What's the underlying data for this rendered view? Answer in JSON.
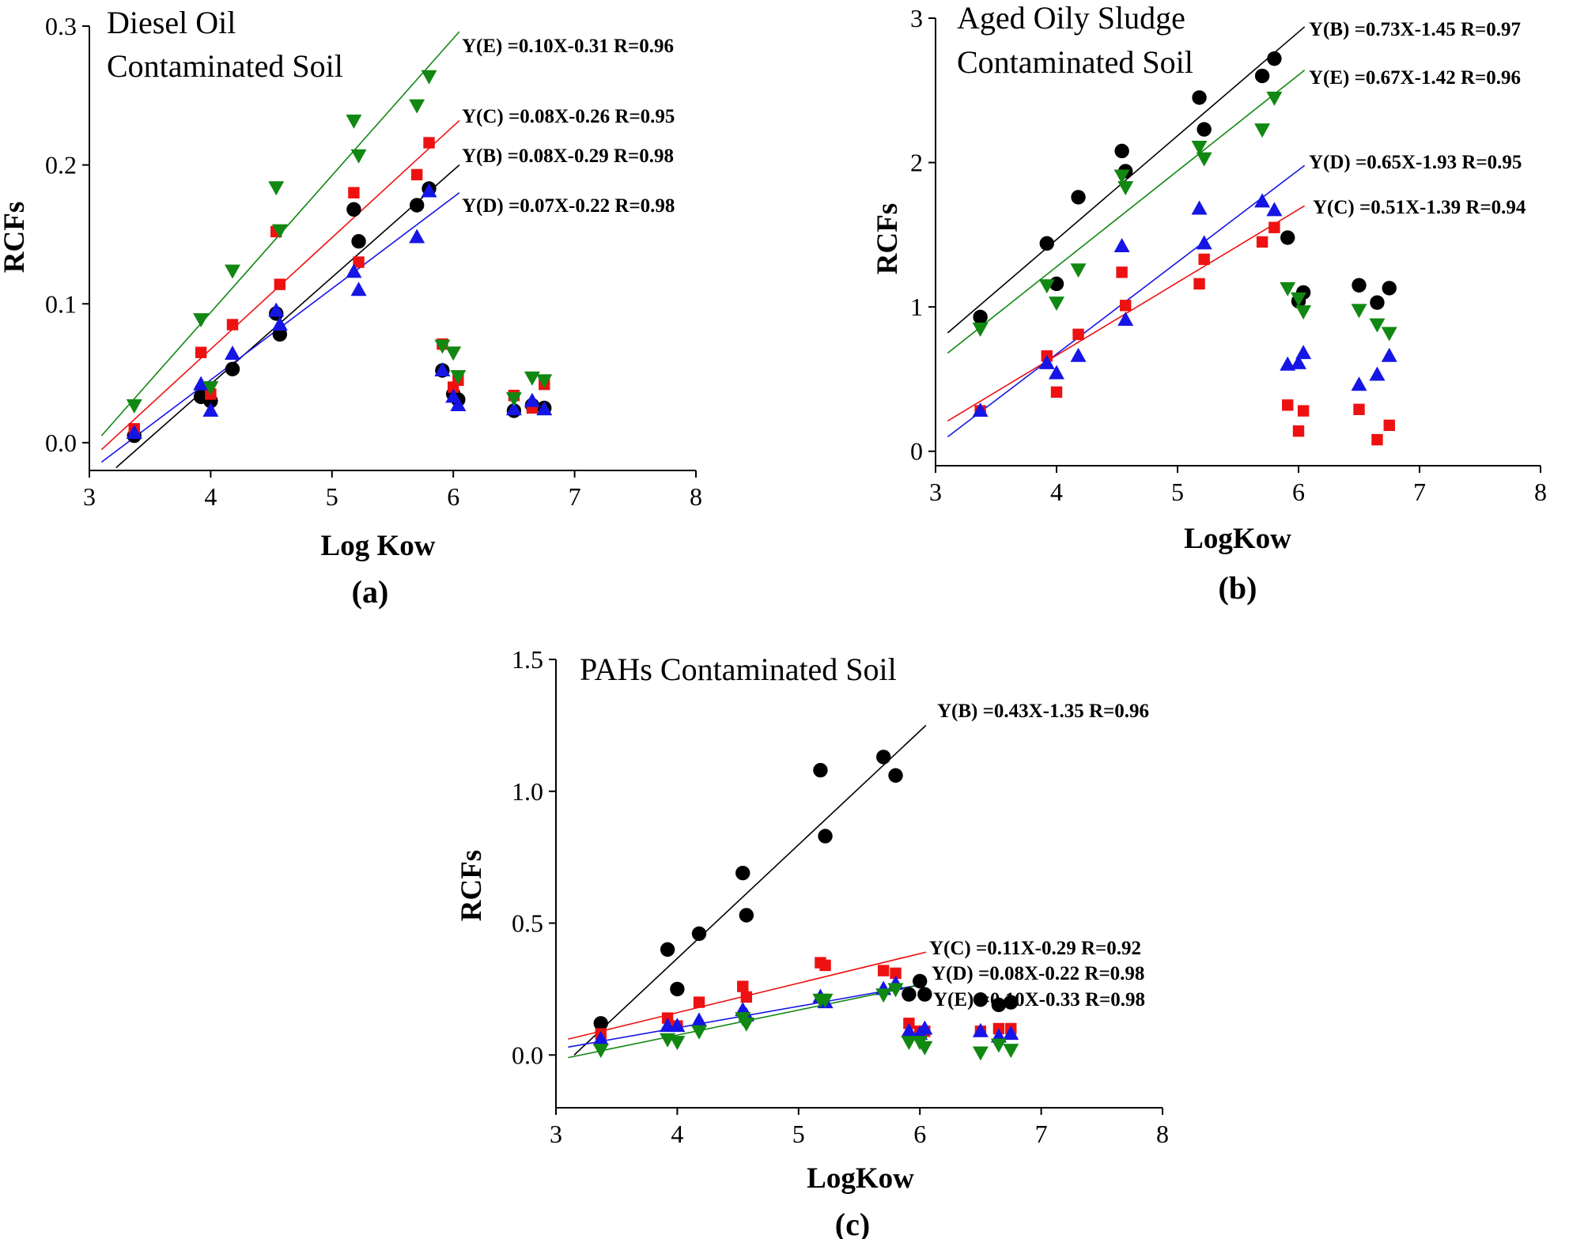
{
  "colors": {
    "B": "#000000",
    "C": "#ee1111",
    "D": "#1515e6",
    "E": "#118811"
  },
  "markers": {
    "B": "circle",
    "C": "square",
    "D": "triangle-up",
    "E": "triangle-down"
  },
  "chart_data": [
    {
      "type": "scatter",
      "panel": "(a)",
      "title": [
        "Diesel Oil",
        "Contaminated Soil"
      ],
      "xlabel": "Log Kow",
      "ylabel": "RCFs",
      "xlim": [
        3,
        8
      ],
      "ylim": [
        -0.02,
        0.3
      ],
      "xticks": [
        3,
        4,
        5,
        6,
        7,
        8
      ],
      "yticks": [
        0,
        0.1,
        0.2,
        0.3
      ],
      "ytick_labels": [
        "0.0",
        "0.1",
        "0.2",
        "0.3"
      ],
      "x": [
        3.37,
        3.92,
        4.0,
        4.18,
        4.54,
        4.57,
        5.18,
        5.22,
        5.7,
        5.8,
        5.91,
        6.0,
        6.04,
        6.5,
        6.65,
        6.75
      ],
      "series": [
        {
          "name": "B",
          "values": [
            0.005,
            0.033,
            0.03,
            0.053,
            0.093,
            0.078,
            0.168,
            0.145,
            0.171,
            0.183,
            0.052,
            0.035,
            0.031,
            0.023,
            0.027,
            0.025
          ]
        },
        {
          "name": "C",
          "values": [
            0.01,
            0.065,
            0.035,
            0.085,
            0.152,
            0.114,
            0.18,
            0.13,
            0.193,
            0.216,
            0.071,
            0.04,
            0.045,
            0.034,
            0.025,
            0.042
          ]
        },
        {
          "name": "D",
          "values": [
            0.007,
            0.042,
            0.023,
            0.064,
            0.095,
            0.085,
            0.123,
            0.11,
            0.148,
            0.181,
            0.052,
            0.033,
            0.027,
            0.024,
            0.03,
            0.024
          ]
        },
        {
          "name": "E",
          "values": [
            0.027,
            0.089,
            0.04,
            0.124,
            0.184,
            0.153,
            0.232,
            0.207,
            0.243,
            0.264,
            0.07,
            0.065,
            0.048,
            0.032,
            0.047,
            0.045
          ]
        }
      ],
      "fits": [
        {
          "name": "E",
          "equation": "Y(E) =0.10X-0.31 R=0.96",
          "x_range": [
            3.1,
            6.05
          ],
          "y_range": [
            0.005,
            0.296
          ]
        },
        {
          "name": "C",
          "equation": "Y(C) =0.08X-0.26 R=0.95",
          "x_range": [
            3.1,
            6.05
          ],
          "y_range": [
            -0.005,
            0.232
          ]
        },
        {
          "name": "B",
          "equation": "Y(B) =0.08X-0.29 R=0.98",
          "x_range": [
            3.22,
            6.05
          ],
          "y_range": [
            -0.018,
            0.2
          ]
        },
        {
          "name": "D",
          "equation": "Y(D) =0.07X-0.22 R=0.98",
          "x_range": [
            3.1,
            6.05
          ],
          "y_range": [
            -0.014,
            0.18
          ]
        }
      ]
    },
    {
      "type": "scatter",
      "panel": "(b)",
      "title": [
        "Aged Oily Sludge",
        "Contaminated Soil"
      ],
      "xlabel": "LogKow",
      "ylabel": "RCFs",
      "xlim": [
        3,
        8
      ],
      "ylim": [
        -0.1,
        3
      ],
      "xticks": [
        3,
        4,
        5,
        6,
        7,
        8
      ],
      "yticks": [
        0,
        1,
        2,
        3
      ],
      "ytick_labels": [
        "0",
        "1",
        "2",
        "3"
      ],
      "x": [
        3.37,
        3.92,
        4.0,
        4.18,
        4.54,
        4.57,
        5.18,
        5.22,
        5.7,
        5.8,
        5.91,
        6.0,
        6.04,
        6.5,
        6.65,
        6.75
      ],
      "series": [
        {
          "name": "B",
          "values": [
            0.93,
            1.44,
            1.16,
            1.76,
            2.08,
            1.94,
            2.45,
            2.23,
            2.6,
            2.72,
            1.48,
            1.04,
            1.1,
            1.15,
            1.03,
            1.13
          ]
        },
        {
          "name": "C",
          "values": [
            0.28,
            0.66,
            0.41,
            0.81,
            1.24,
            1.01,
            1.16,
            1.33,
            1.45,
            1.55,
            0.32,
            0.14,
            0.28,
            0.29,
            0.08,
            0.18
          ]
        },
        {
          "name": "D",
          "values": [
            0.28,
            0.61,
            0.54,
            0.66,
            1.42,
            0.91,
            1.68,
            1.44,
            1.73,
            1.67,
            0.6,
            0.61,
            0.68,
            0.46,
            0.53,
            0.66
          ]
        },
        {
          "name": "E",
          "values": [
            0.85,
            1.15,
            1.03,
            1.26,
            1.91,
            1.83,
            2.11,
            2.03,
            2.23,
            2.45,
            1.13,
            1.06,
            0.97,
            0.98,
            0.88,
            0.82
          ]
        }
      ],
      "fits": [
        {
          "name": "B",
          "equation": "Y(B) =0.73X-1.45 R=0.97",
          "x_range": [
            3.1,
            6.05
          ],
          "y_range": [
            0.82,
            2.94
          ]
        },
        {
          "name": "E",
          "equation": "Y(E) =0.67X-1.42  R=0.96",
          "x_range": [
            3.1,
            6.05
          ],
          "y_range": [
            0.68,
            2.64
          ]
        },
        {
          "name": "D",
          "equation": "Y(D) =0.65X-1.93 R=0.95",
          "x_range": [
            3.1,
            6.05
          ],
          "y_range": [
            0.1,
            1.98
          ]
        },
        {
          "name": "C",
          "equation": "Y(C) =0.51X-1.39 R=0.94",
          "x_range": [
            3.1,
            6.05
          ],
          "y_range": [
            0.21,
            1.7
          ]
        }
      ]
    },
    {
      "type": "scatter",
      "panel": "(c)",
      "title": [
        "PAHs Contaminated Soil"
      ],
      "xlabel": "LogKow",
      "ylabel": "RCFs",
      "xlim": [
        3,
        8
      ],
      "ylim": [
        -0.2,
        1.5
      ],
      "xticks": [
        3,
        4,
        5,
        6,
        7,
        8
      ],
      "yticks": [
        0,
        0.5,
        1.0,
        1.5
      ],
      "ytick_labels": [
        "0.0",
        "0.5",
        "1.0",
        "1.5"
      ],
      "x": [
        3.37,
        3.92,
        4.0,
        4.18,
        4.54,
        4.57,
        5.18,
        5.22,
        5.7,
        5.8,
        5.91,
        6.0,
        6.04,
        6.5,
        6.65,
        6.75
      ],
      "series": [
        {
          "name": "B",
          "values": [
            0.12,
            0.4,
            0.25,
            0.46,
            0.69,
            0.53,
            1.08,
            0.83,
            1.13,
            1.06,
            0.23,
            0.28,
            0.23,
            0.21,
            0.19,
            0.2
          ]
        },
        {
          "name": "C",
          "values": [
            0.08,
            0.14,
            0.11,
            0.2,
            0.26,
            0.22,
            0.35,
            0.34,
            0.32,
            0.31,
            0.12,
            0.09,
            0.09,
            0.09,
            0.1,
            0.1
          ]
        },
        {
          "name": "D",
          "values": [
            0.06,
            0.11,
            0.11,
            0.13,
            0.17,
            0.15,
            0.22,
            0.2,
            0.25,
            0.27,
            0.09,
            0.08,
            0.1,
            0.09,
            0.07,
            0.08
          ]
        },
        {
          "name": "E",
          "values": [
            0.02,
            0.06,
            0.05,
            0.09,
            0.14,
            0.12,
            0.21,
            0.21,
            0.23,
            0.25,
            0.05,
            0.05,
            0.03,
            0.01,
            0.04,
            0.02
          ]
        }
      ],
      "fits": [
        {
          "name": "B",
          "equation": "Y(B) =0.43X-1.35 R=0.96",
          "x_range": [
            3.15,
            6.05
          ],
          "y_range": [
            0.0,
            1.25
          ]
        },
        {
          "name": "C",
          "equation": "Y(C) =0.11X-0.29 R=0.92",
          "x_range": [
            3.1,
            6.05
          ],
          "y_range": [
            0.06,
            0.39
          ]
        },
        {
          "name": "D",
          "equation": "Y(D) =0.08X-0.22 R=0.98",
          "x_range": [
            3.1,
            6.05
          ],
          "y_range": [
            0.03,
            0.27
          ]
        },
        {
          "name": "E",
          "equation": "Y(E) =0.10X-0.33 R=0.98",
          "x_range": [
            3.1,
            6.05
          ],
          "y_range": [
            -0.01,
            0.27
          ]
        }
      ]
    }
  ]
}
